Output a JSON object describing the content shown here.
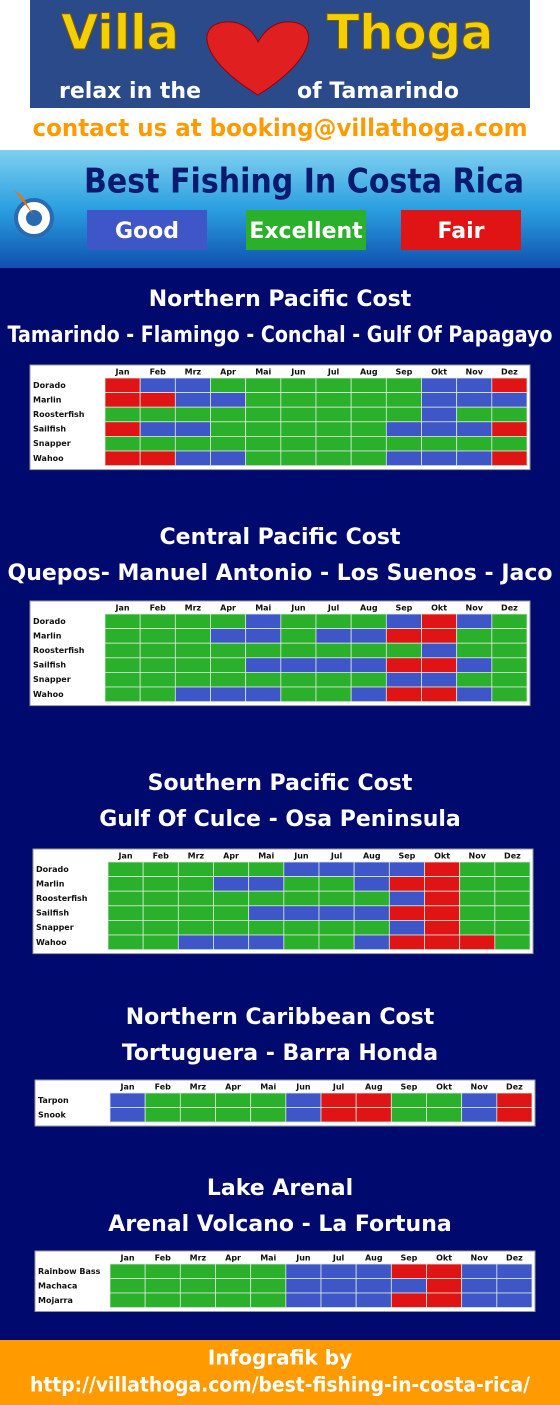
{
  "header": {
    "logo_left": "Villa",
    "logo_right": "Thoga",
    "tagline_left": "relax in the",
    "tagline_right": "of Tamarindo",
    "contact": "contact us at booking@villathoga.com",
    "title": "Best Fishing In Costa Rica"
  },
  "legend": [
    {
      "label": "Good",
      "color": "#3f56c8"
    },
    {
      "label": "Excellent",
      "color": "#2bb02b"
    },
    {
      "label": "Fair",
      "color": "#e01414"
    }
  ],
  "months": [
    "Jan",
    "Feb",
    "Mrz",
    "Apr",
    "Mai",
    "Jun",
    "Jul",
    "Aug",
    "Sep",
    "Okt",
    "Nov",
    "Dez"
  ],
  "sections": [
    {
      "title": "Northern Pacific Cost",
      "subtitle": "Tamarindo - Flamingo - Conchal - Gulf Of Papagayo",
      "rows": [
        {
          "fish": "Dorado",
          "cells": [
            "Fair",
            "Good",
            "Good",
            "Excellent",
            "Excellent",
            "Excellent",
            "Excellent",
            "Excellent",
            "Excellent",
            "Good",
            "Good",
            "Fair"
          ]
        },
        {
          "fish": "Marlin",
          "cells": [
            "Fair",
            "Fair",
            "Good",
            "Good",
            "Excellent",
            "Excellent",
            "Excellent",
            "Excellent",
            "Excellent",
            "Good",
            "Good",
            "Good"
          ]
        },
        {
          "fish": "Roosterfish",
          "cells": [
            "Excellent",
            "Excellent",
            "Excellent",
            "Excellent",
            "Excellent",
            "Excellent",
            "Excellent",
            "Excellent",
            "Excellent",
            "Good",
            "Excellent",
            "Excellent"
          ]
        },
        {
          "fish": "Sailfish",
          "cells": [
            "Fair",
            "Good",
            "Good",
            "Excellent",
            "Excellent",
            "Excellent",
            "Excellent",
            "Excellent",
            "Good",
            "Good",
            "Good",
            "Fair"
          ]
        },
        {
          "fish": "Snapper",
          "cells": [
            "Excellent",
            "Excellent",
            "Excellent",
            "Excellent",
            "Excellent",
            "Excellent",
            "Excellent",
            "Excellent",
            "Excellent",
            "Excellent",
            "Excellent",
            "Excellent"
          ]
        },
        {
          "fish": "Wahoo",
          "cells": [
            "Fair",
            "Fair",
            "Good",
            "Good",
            "Excellent",
            "Excellent",
            "Excellent",
            "Excellent",
            "Good",
            "Good",
            "Good",
            "Fair"
          ]
        }
      ]
    },
    {
      "title": "Central Pacific Cost",
      "subtitle": "Quepos- Manuel Antonio - Los Suenos - Jaco",
      "rows": [
        {
          "fish": "Dorado",
          "cells": [
            "Excellent",
            "Excellent",
            "Excellent",
            "Excellent",
            "Good",
            "Excellent",
            "Excellent",
            "Excellent",
            "Good",
            "Fair",
            "Good",
            "Excellent"
          ]
        },
        {
          "fish": "Marlin",
          "cells": [
            "Excellent",
            "Excellent",
            "Excellent",
            "Good",
            "Good",
            "Excellent",
            "Good",
            "Good",
            "Fair",
            "Fair",
            "Excellent",
            "Excellent"
          ]
        },
        {
          "fish": "Roosterfish",
          "cells": [
            "Excellent",
            "Excellent",
            "Excellent",
            "Excellent",
            "Excellent",
            "Excellent",
            "Excellent",
            "Excellent",
            "Excellent",
            "Good",
            "Excellent",
            "Excellent"
          ]
        },
        {
          "fish": "Sailfish",
          "cells": [
            "Excellent",
            "Excellent",
            "Excellent",
            "Excellent",
            "Good",
            "Good",
            "Good",
            "Good",
            "Fair",
            "Fair",
            "Good",
            "Excellent"
          ]
        },
        {
          "fish": "Snapper",
          "cells": [
            "Excellent",
            "Excellent",
            "Excellent",
            "Excellent",
            "Excellent",
            "Excellent",
            "Excellent",
            "Excellent",
            "Good",
            "Good",
            "Excellent",
            "Excellent"
          ]
        },
        {
          "fish": "Wahoo",
          "cells": [
            "Excellent",
            "Excellent",
            "Good",
            "Good",
            "Good",
            "Excellent",
            "Excellent",
            "Good",
            "Fair",
            "Fair",
            "Good",
            "Excellent"
          ]
        }
      ]
    },
    {
      "title": "Southern Pacific Cost",
      "subtitle": "Gulf Of Culce - Osa  Peninsula",
      "rows": [
        {
          "fish": "Dorado",
          "cells": [
            "Excellent",
            "Excellent",
            "Excellent",
            "Excellent",
            "Excellent",
            "Good",
            "Good",
            "Good",
            "Good",
            "Fair",
            "Excellent",
            "Excellent"
          ]
        },
        {
          "fish": "Marlin",
          "cells": [
            "Excellent",
            "Excellent",
            "Excellent",
            "Good",
            "Good",
            "Excellent",
            "Excellent",
            "Good",
            "Fair",
            "Fair",
            "Excellent",
            "Excellent"
          ]
        },
        {
          "fish": "Roosterfish",
          "cells": [
            "Excellent",
            "Excellent",
            "Excellent",
            "Excellent",
            "Excellent",
            "Excellent",
            "Excellent",
            "Excellent",
            "Good",
            "Fair",
            "Excellent",
            "Excellent"
          ]
        },
        {
          "fish": "Sailfish",
          "cells": [
            "Excellent",
            "Excellent",
            "Excellent",
            "Excellent",
            "Good",
            "Good",
            "Good",
            "Good",
            "Fair",
            "Fair",
            "Excellent",
            "Excellent"
          ]
        },
        {
          "fish": "Snapper",
          "cells": [
            "Excellent",
            "Excellent",
            "Excellent",
            "Excellent",
            "Excellent",
            "Excellent",
            "Excellent",
            "Excellent",
            "Good",
            "Fair",
            "Excellent",
            "Excellent"
          ]
        },
        {
          "fish": "Wahoo",
          "cells": [
            "Excellent",
            "Excellent",
            "Good",
            "Good",
            "Good",
            "Excellent",
            "Excellent",
            "Good",
            "Fair",
            "Fair",
            "Fair",
            "Excellent"
          ]
        }
      ]
    },
    {
      "title": "Northern Caribbean Cost",
      "subtitle": "Tortuguera - Barra Honda",
      "rows": [
        {
          "fish": "Tarpon",
          "cells": [
            "Good",
            "Excellent",
            "Excellent",
            "Excellent",
            "Excellent",
            "Good",
            "Fair",
            "Fair",
            "Excellent",
            "Excellent",
            "Good",
            "Fair"
          ]
        },
        {
          "fish": "Snook",
          "cells": [
            "Good",
            "Excellent",
            "Excellent",
            "Excellent",
            "Excellent",
            "Good",
            "Fair",
            "Fair",
            "Excellent",
            "Excellent",
            "Good",
            "Fair"
          ]
        }
      ]
    },
    {
      "title": "Lake Arenal",
      "subtitle": "Arenal Volcano - La Fortuna",
      "rows": [
        {
          "fish": "Rainbow Bass",
          "cells": [
            "Excellent",
            "Excellent",
            "Excellent",
            "Excellent",
            "Excellent",
            "Good",
            "Good",
            "Good",
            "Fair",
            "Fair",
            "Good",
            "Good"
          ]
        },
        {
          "fish": "Machaca",
          "cells": [
            "Excellent",
            "Excellent",
            "Excellent",
            "Excellent",
            "Excellent",
            "Good",
            "Good",
            "Good",
            "Good",
            "Fair",
            "Good",
            "Good"
          ]
        },
        {
          "fish": "Mojarra",
          "cells": [
            "Excellent",
            "Excellent",
            "Excellent",
            "Excellent",
            "Excellent",
            "Good",
            "Good",
            "Good",
            "Fair",
            "Fair",
            "Good",
            "Good"
          ]
        }
      ]
    }
  ],
  "footer": {
    "line1": "Infografik by",
    "line2": "http://villathoga.com/best-fishing-in-costa-rica/"
  }
}
